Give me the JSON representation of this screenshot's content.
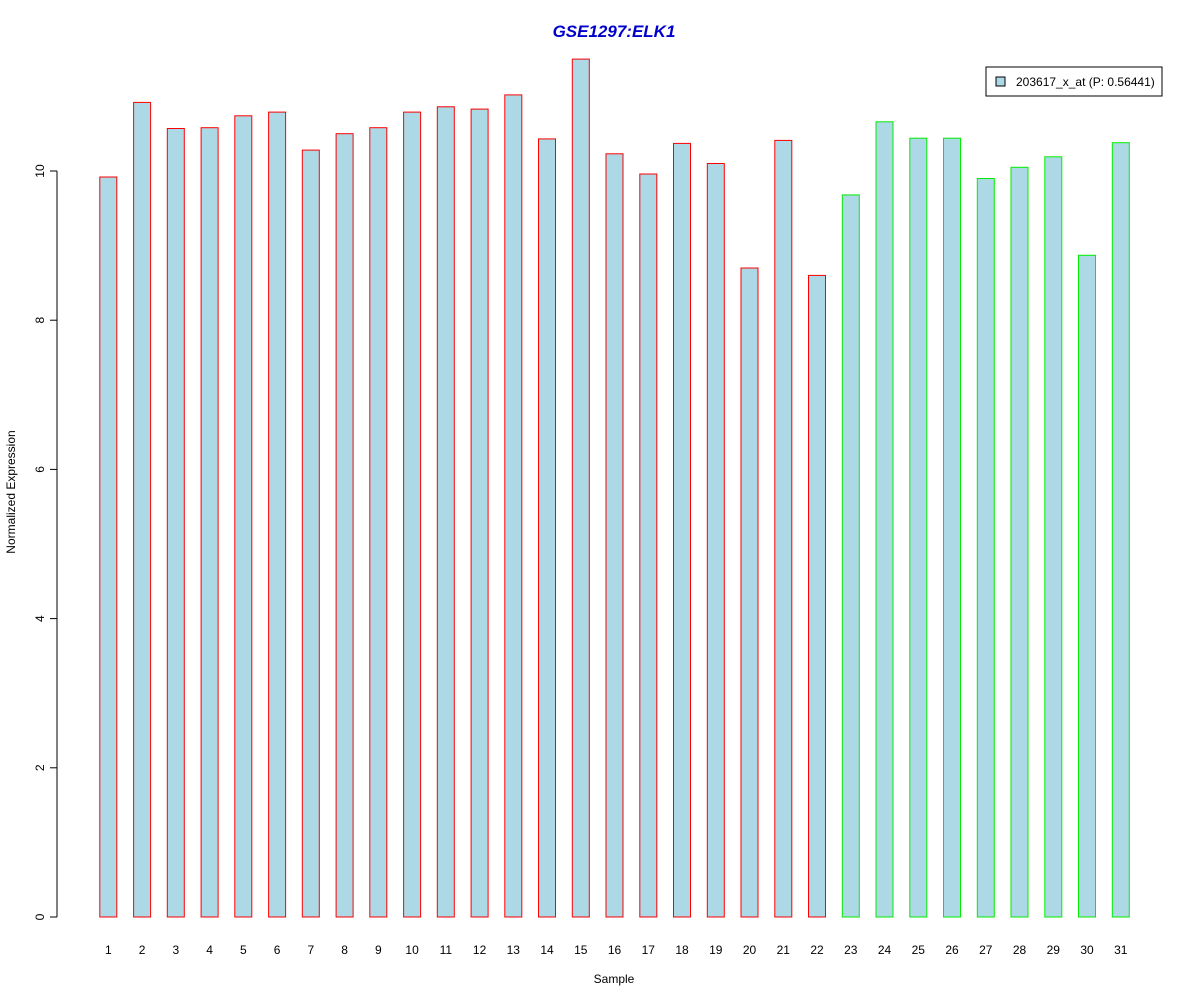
{
  "chart_data": {
    "type": "bar",
    "title": "GSE1297:ELK1",
    "xlabel": "Sample",
    "ylabel": "Normalized Expression",
    "ylim": [
      0,
      11.5
    ],
    "y_ticks": [
      0,
      2,
      4,
      6,
      8,
      10
    ],
    "grid": false,
    "legend_position": "top-right",
    "categories": [
      "1",
      "2",
      "3",
      "4",
      "5",
      "6",
      "7",
      "8",
      "9",
      "10",
      "11",
      "12",
      "13",
      "14",
      "15",
      "16",
      "17",
      "18",
      "19",
      "20",
      "21",
      "22",
      "23",
      "24",
      "25",
      "26",
      "27",
      "28",
      "29",
      "30",
      "31"
    ],
    "series": [
      {
        "name": "203617_x_at (P: 0.56441)",
        "values": [
          9.92,
          10.92,
          10.57,
          10.58,
          10.74,
          10.79,
          10.28,
          10.5,
          10.58,
          10.79,
          10.86,
          10.83,
          11.02,
          10.43,
          11.5,
          10.23,
          9.96,
          10.37,
          10.1,
          8.7,
          10.41,
          8.6,
          9.68,
          10.66,
          10.44,
          10.44,
          9.9,
          10.05,
          10.19,
          8.87,
          10.38
        ]
      }
    ],
    "groups": [
      "red",
      "red",
      "red",
      "red",
      "red",
      "red",
      "red",
      "red",
      "red",
      "red",
      "red",
      "red",
      "red",
      "red",
      "red",
      "red",
      "red",
      "red",
      "red",
      "red",
      "red",
      "red",
      "green",
      "green",
      "green",
      "green",
      "green",
      "green",
      "green",
      "green",
      "green"
    ],
    "colors": {
      "bar_fill": "#add8e6",
      "group_red": "#ff0000",
      "group_green": "#00ee00",
      "title": "#0000cd",
      "axis": "#000000"
    }
  }
}
